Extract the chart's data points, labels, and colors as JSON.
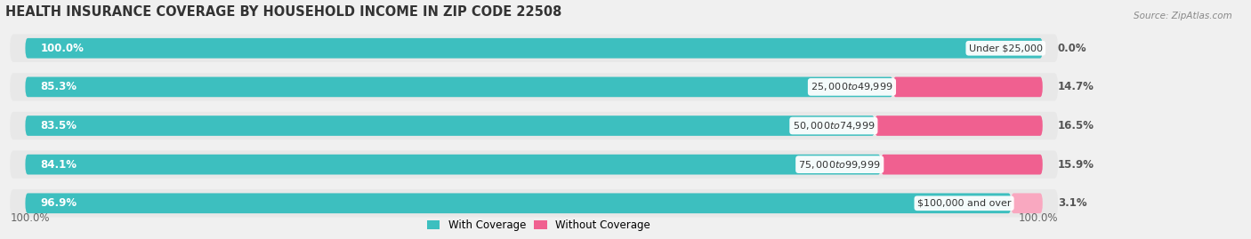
{
  "title": "HEALTH INSURANCE COVERAGE BY HOUSEHOLD INCOME IN ZIP CODE 22508",
  "source": "Source: ZipAtlas.com",
  "categories": [
    "Under $25,000",
    "$25,000 to $49,999",
    "$50,000 to $74,999",
    "$75,000 to $99,999",
    "$100,000 and over"
  ],
  "with_coverage": [
    100.0,
    85.3,
    83.5,
    84.1,
    96.9
  ],
  "without_coverage": [
    0.0,
    14.7,
    16.5,
    15.9,
    3.1
  ],
  "color_with": "#3DBFBF",
  "color_without": "#F06090",
  "color_without_light": "#F9A8C0",
  "bar_bg_color": "#E8E8E8",
  "background_color": "#F0F0F0",
  "title_fontsize": 10.5,
  "label_fontsize": 8.5,
  "cat_fontsize": 8.0,
  "legend_fontsize": 8.5,
  "bottom_left_label": "100.0%",
  "bottom_right_label": "100.0%"
}
